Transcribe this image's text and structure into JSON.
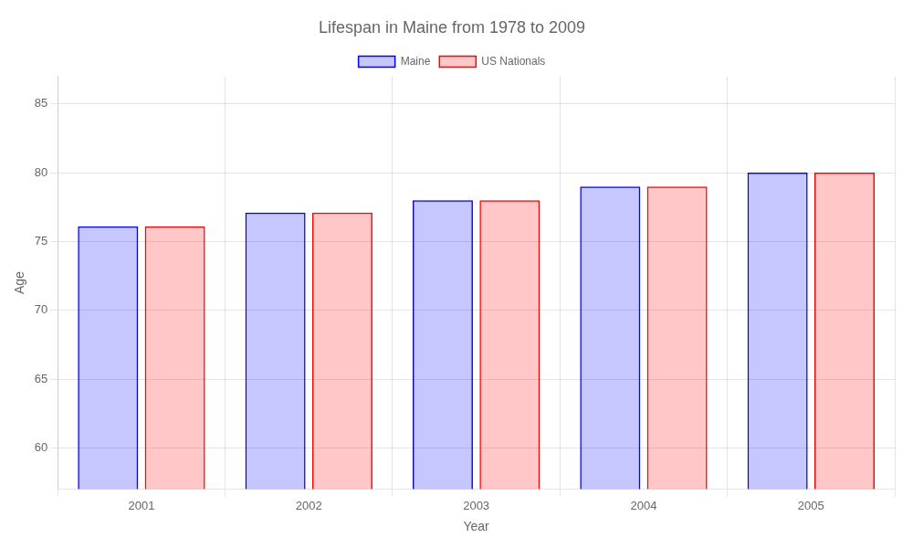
{
  "chart_data": {
    "type": "bar",
    "title": "Lifespan in Maine from 1978 to 2009",
    "xlabel": "Year",
    "ylabel": "Age",
    "categories": [
      "2001",
      "2002",
      "2003",
      "2004",
      "2005"
    ],
    "series": [
      {
        "name": "Maine",
        "color": "#0000ff",
        "values": [
          76.1,
          77.1,
          78.0,
          79.0,
          80.0
        ]
      },
      {
        "name": "US Nationals",
        "color": "#ff0000",
        "values": [
          76.1,
          77.1,
          78.0,
          79.0,
          80.0
        ]
      }
    ],
    "ylim": [
      57,
      87
    ],
    "yticks": [
      60,
      65,
      70,
      75,
      80,
      85
    ],
    "grid": true,
    "legend": "top"
  }
}
